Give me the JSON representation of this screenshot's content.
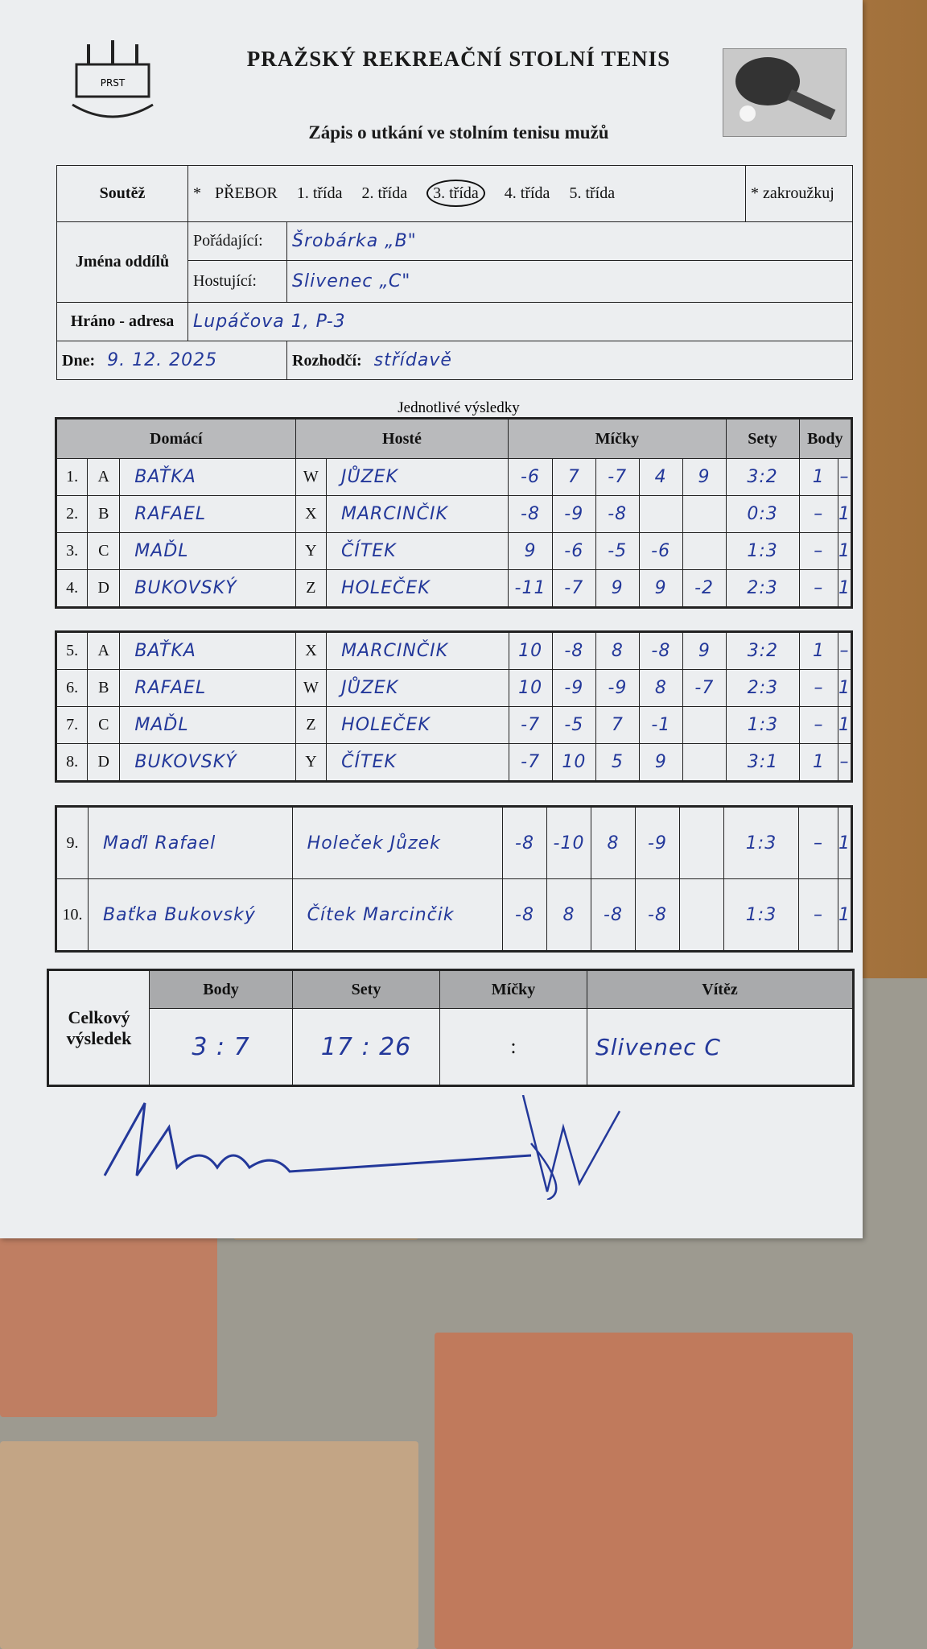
{
  "header": {
    "title": "PRAŽSKÝ REKREAČNÍ STOLNÍ TENIS",
    "subtitle": "Zápis o utkání ve stolním tenisu mužů",
    "logo_text": "PRST",
    "logo_ring": "PRAŽSKÝ REKREAČNÍ STOLNÍ TENIS",
    "image_icon": "ping-pong-paddle-icon"
  },
  "form": {
    "soutez_label": "Soutěž",
    "star": "*",
    "classes": [
      "PŘEBOR",
      "1. třída",
      "2. třída",
      "3. třída",
      "4. třída",
      "5. třída"
    ],
    "selected_class": "3. třída",
    "zakrouzkuj": "* zakroužkuj",
    "jmena_label": "Jména oddílů",
    "poradajici_label": "Pořádající:",
    "poradajici": "Šrobárka „B\"",
    "hostujici_label": "Hostující:",
    "hostujici": "Slivenec „C\"",
    "hrano_label": "Hráno - adresa",
    "adresa": "Lupáčova 1, P-3",
    "dne_label": "Dne:",
    "datum": "9. 12. 2025",
    "rozhodci_label": "Rozhodčí:",
    "rozhodci": "střídavě"
  },
  "results": {
    "section_title": "Jednotlivé výsledky",
    "headers": {
      "home": "Domácí",
      "away": "Hosté",
      "balls": "Míčky",
      "sets": "Sety",
      "points": "Body"
    },
    "games": [
      {
        "no": "1.",
        "hl": "A",
        "home": "BAŤKA",
        "al": "W",
        "away": "JŮZEK",
        "balls": [
          "-6",
          "7",
          "-7",
          "4",
          "9"
        ],
        "sets": "3:2",
        "ph": "1",
        "pa": "–"
      },
      {
        "no": "2.",
        "hl": "B",
        "home": "RAFAEL",
        "al": "X",
        "away": "MARCINČIK",
        "balls": [
          "-8",
          "-9",
          "-8",
          "",
          ""
        ],
        "sets": "0:3",
        "ph": "–",
        "pa": "1"
      },
      {
        "no": "3.",
        "hl": "C",
        "home": "MAĎL",
        "al": "Y",
        "away": "ČÍTEK",
        "balls": [
          "9",
          "-6",
          "-5",
          "-6",
          ""
        ],
        "sets": "1:3",
        "ph": "–",
        "pa": "1"
      },
      {
        "no": "4.",
        "hl": "D",
        "home": "BUKOVSKÝ",
        "al": "Z",
        "away": "HOLEČEK",
        "balls": [
          "-11",
          "-7",
          "9",
          "9",
          "-2"
        ],
        "sets": "2:3",
        "ph": "–",
        "pa": "1"
      },
      {
        "no": "5.",
        "hl": "A",
        "home": "BAŤKA",
        "al": "X",
        "away": "MARCINČIK",
        "balls": [
          "10",
          "-8",
          "8",
          "-8",
          "9"
        ],
        "sets": "3:2",
        "ph": "1",
        "pa": "–"
      },
      {
        "no": "6.",
        "hl": "B",
        "home": "RAFAEL",
        "al": "W",
        "away": "JŮZEK",
        "balls": [
          "10",
          "-9",
          "-9",
          "8",
          "-7"
        ],
        "sets": "2:3",
        "ph": "–",
        "pa": "1"
      },
      {
        "no": "7.",
        "hl": "C",
        "home": "MAĎL",
        "al": "Z",
        "away": "HOLEČEK",
        "balls": [
          "-7",
          "-5",
          "7",
          "-1",
          ""
        ],
        "sets": "1:3",
        "ph": "–",
        "pa": "1"
      },
      {
        "no": "8.",
        "hl": "D",
        "home": "BUKOVSKÝ",
        "al": "Y",
        "away": "ČÍTEK",
        "balls": [
          "-7",
          "10",
          "5",
          "9",
          ""
        ],
        "sets": "3:1",
        "ph": "1",
        "pa": "–"
      }
    ],
    "doubles": [
      {
        "no": "9.",
        "home": "Maďl Rafael",
        "away": "Holeček Jůzek",
        "balls": [
          "-8",
          "-10",
          "8",
          "-9",
          ""
        ],
        "sets": "1:3",
        "ph": "–",
        "pa": "1"
      },
      {
        "no": "10.",
        "home": "Baťka Bukovský",
        "away": "Čítek Marcinčik",
        "balls": [
          "-8",
          "8",
          "-8",
          "-8",
          ""
        ],
        "sets": "1:3",
        "ph": "–",
        "pa": "1"
      }
    ]
  },
  "summary": {
    "label": "Celkový výsledek",
    "headers": [
      "Body",
      "Sety",
      "Míčky",
      "Vítěz"
    ],
    "body": "3 : 7",
    "sety": "17 : 26",
    "micky": ":",
    "vitez": "Slivenec C"
  }
}
